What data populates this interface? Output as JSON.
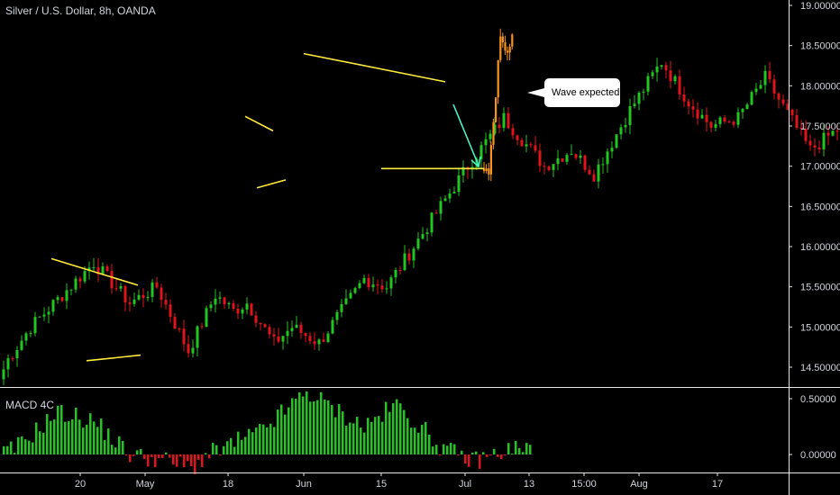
{
  "header": {
    "title": "Silver / U.S. Dollar, 8h, OANDA"
  },
  "macd": {
    "title": "MACD 4C"
  },
  "colors": {
    "background": "#000000",
    "up": "#22c521",
    "down": "#e0141b",
    "projection": "#f7931e",
    "pattern_line": "#ffeb3b",
    "arrow": "#4df0c8",
    "axis_text": "#d1d4dc"
  },
  "chart_data": [
    {
      "type": "candlestick",
      "title": "Silver / U.S. Dollar, 8h, OANDA",
      "x_tick_labels": [
        "20",
        "May",
        "18",
        "Jun",
        "15",
        "Jul",
        "13",
        "15:00",
        "Aug",
        "17"
      ],
      "y_tick_labels": [
        "14.50000",
        "15.00000",
        "15.50000",
        "16.00000",
        "16.50000",
        "17.00000",
        "17.50000",
        "18.00000",
        "18.50000",
        "19.00000"
      ],
      "ylim": [
        14.25,
        19.0
      ],
      "price_path": [
        [
          14.6,
          2
        ],
        [
          15.0,
          5
        ],
        [
          15.8,
          14
        ],
        [
          15.3,
          8
        ],
        [
          15.5,
          6
        ],
        [
          14.7,
          7
        ],
        [
          15.4,
          6
        ],
        [
          15.2,
          4
        ],
        [
          15.3,
          3
        ],
        [
          14.8,
          6
        ],
        [
          15.0,
          4
        ],
        [
          14.8,
          6
        ],
        [
          15.6,
          10
        ],
        [
          15.5,
          5
        ],
        [
          17.0,
          18
        ],
        [
          17.6,
          8
        ],
        [
          17.0,
          9
        ],
        [
          17.2,
          6
        ],
        [
          16.9,
          5
        ],
        [
          17.7,
          8
        ],
        [
          18.3,
          7
        ],
        [
          17.8,
          6
        ],
        [
          17.5,
          5
        ],
        [
          17.6,
          6
        ],
        [
          18.1,
          6
        ],
        [
          17.2,
          10
        ],
        [
          17.5,
          7
        ],
        [
          17.4,
          6
        ],
        [
          17.9,
          8
        ],
        [
          17.8,
          4
        ],
        [
          17.6,
          5
        ],
        [
          17.7,
          3
        ]
      ],
      "projection_path": [
        [
          16.95,
          3
        ],
        [
          18.6,
          5
        ],
        [
          18.35,
          2
        ],
        [
          18.65,
          3
        ]
      ],
      "annotations": [
        {
          "label": "Wave expected"
        }
      ]
    },
    {
      "type": "bar",
      "title": "MACD 4C",
      "y_tick_labels": [
        "0.00000",
        "0.50000"
      ],
      "ylim": [
        -0.12,
        0.55
      ],
      "histogram_path": [
        [
          0.05,
          4
        ],
        [
          0.38,
          12
        ],
        [
          0.3,
          10
        ],
        [
          0.0,
          10
        ],
        [
          -0.05,
          9
        ],
        [
          -0.12,
          8
        ],
        [
          0.0,
          5
        ],
        [
          0.12,
          8
        ],
        [
          0.2,
          6
        ],
        [
          0.56,
          13
        ],
        [
          0.4,
          8
        ],
        [
          0.25,
          8
        ],
        [
          0.45,
          9
        ],
        [
          0.05,
          13
        ],
        [
          -0.06,
          8
        ],
        [
          0.0,
          6
        ],
        [
          0.06,
          6
        ],
        [
          0.06,
          4
        ]
      ]
    }
  ]
}
